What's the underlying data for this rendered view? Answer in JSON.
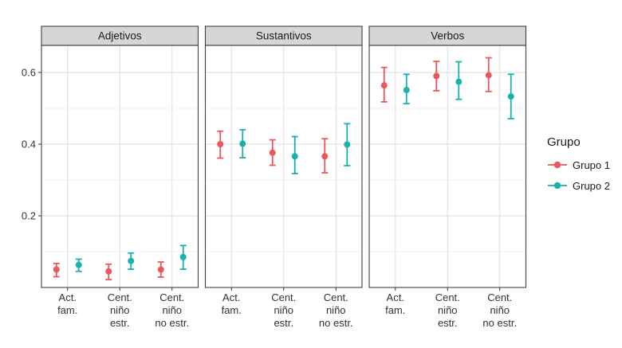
{
  "chart_data": {
    "type": "pointrange",
    "title": "",
    "xlabel": "",
    "ylabel": "",
    "facets": [
      "Adjetivos",
      "Sustantivos",
      "Verbos"
    ],
    "categories": [
      [
        "Act.",
        "fam."
      ],
      [
        "Cent.",
        "niño",
        "estr."
      ],
      [
        "Cent.",
        "niño",
        "no estr."
      ]
    ],
    "ylim": [
      0,
      0.675
    ],
    "yticks": [
      0.2,
      0.4,
      0.6
    ],
    "yticks_minor": [
      0.1,
      0.3,
      0.5
    ],
    "grid": true,
    "legend": {
      "title": "Grupo",
      "position": "right"
    },
    "series": [
      {
        "name": "Grupo 1",
        "color": "#EA575C",
        "data": {
          "Adjetivos": [
            {
              "y": 0.05,
              "lo": 0.03,
              "hi": 0.067
            },
            {
              "y": 0.045,
              "lo": 0.022,
              "hi": 0.065
            },
            {
              "y": 0.05,
              "lo": 0.029,
              "hi": 0.071
            }
          ],
          "Sustantivos": [
            {
              "y": 0.4,
              "lo": 0.361,
              "hi": 0.436
            },
            {
              "y": 0.376,
              "lo": 0.341,
              "hi": 0.412
            },
            {
              "y": 0.366,
              "lo": 0.32,
              "hi": 0.415
            }
          ],
          "Verbos": [
            {
              "y": 0.564,
              "lo": 0.518,
              "hi": 0.614
            },
            {
              "y": 0.59,
              "lo": 0.549,
              "hi": 0.631
            },
            {
              "y": 0.592,
              "lo": 0.547,
              "hi": 0.641
            }
          ]
        }
      },
      {
        "name": "Grupo 2",
        "color": "#18B2AC",
        "data": {
          "Adjetivos": [
            {
              "y": 0.063,
              "lo": 0.045,
              "hi": 0.079
            },
            {
              "y": 0.074,
              "lo": 0.051,
              "hi": 0.096
            },
            {
              "y": 0.085,
              "lo": 0.051,
              "hi": 0.117
            }
          ],
          "Sustantivos": [
            {
              "y": 0.401,
              "lo": 0.362,
              "hi": 0.44
            },
            {
              "y": 0.366,
              "lo": 0.318,
              "hi": 0.421
            },
            {
              "y": 0.399,
              "lo": 0.34,
              "hi": 0.457
            }
          ],
          "Verbos": [
            {
              "y": 0.551,
              "lo": 0.513,
              "hi": 0.595
            },
            {
              "y": 0.574,
              "lo": 0.525,
              "hi": 0.63
            },
            {
              "y": 0.533,
              "lo": 0.471,
              "hi": 0.595
            }
          ]
        }
      }
    ],
    "style_colors": {
      "strip_background": "#D6D6D6",
      "panel_border": "#404040",
      "grid_major": "#DEDEDE",
      "grid_minor": "#F1F1F1",
      "axis_text": "#333333"
    }
  }
}
